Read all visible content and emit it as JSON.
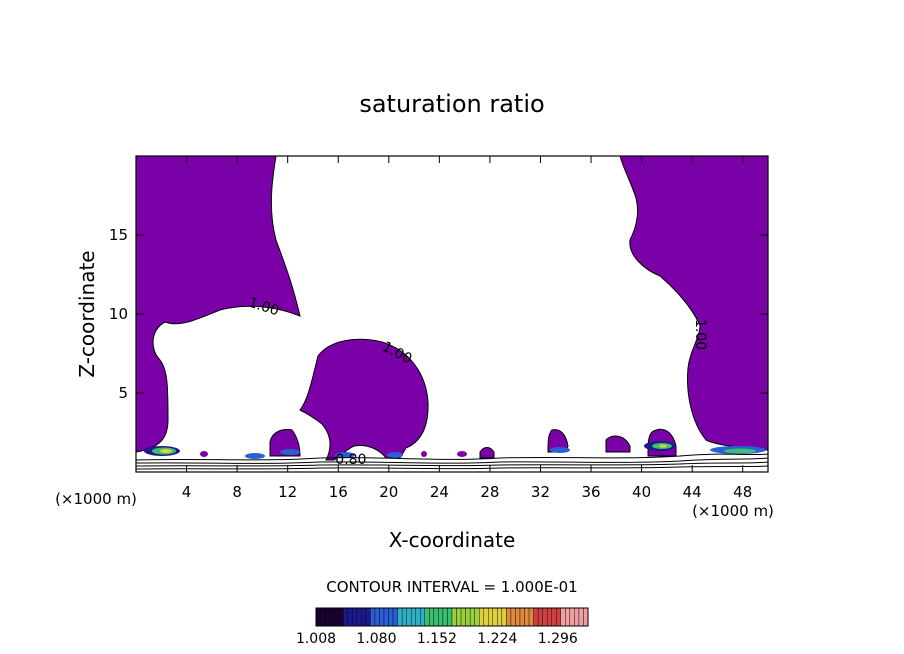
{
  "chart_data": {
    "type": "contour",
    "title": "saturation ratio",
    "xlabel": "X-coordinate",
    "ylabel": "Z-coordinate",
    "x_unit": "(×1000 m)",
    "x_unit_right": "(×1000 m)",
    "xlim": [
      0,
      50
    ],
    "ylim": [
      0,
      20
    ],
    "x_ticks": [
      4,
      8,
      12,
      16,
      20,
      24,
      28,
      32,
      36,
      40,
      44,
      48
    ],
    "y_ticks": [
      5,
      10,
      15
    ],
    "fill_color": "#7a00a8",
    "contour_labels": [
      {
        "text": "1.00",
        "x": 10,
        "y": 10.2
      },
      {
        "text": "1.00",
        "x": 20.5,
        "y": 7.3
      },
      {
        "text": "1.00",
        "x": 44.3,
        "y": 8.7
      },
      {
        "text": "0.80",
        "x": 17,
        "y": 0.5
      }
    ],
    "contour_interval_label": "CONTOUR INTERVAL = 1.000E-01",
    "colorbar": {
      "min": 1.008,
      "max": 1.332,
      "labels": [
        "1.008",
        "1.080",
        "1.152",
        "1.224",
        "1.296"
      ],
      "colors": [
        "#1a0033",
        "#1a1a8c",
        "#2a5fd8",
        "#2fb0c8",
        "#3ac070",
        "#9ad040",
        "#e0d040",
        "#e08a40",
        "#d04040",
        "#f0a0a0"
      ]
    }
  }
}
